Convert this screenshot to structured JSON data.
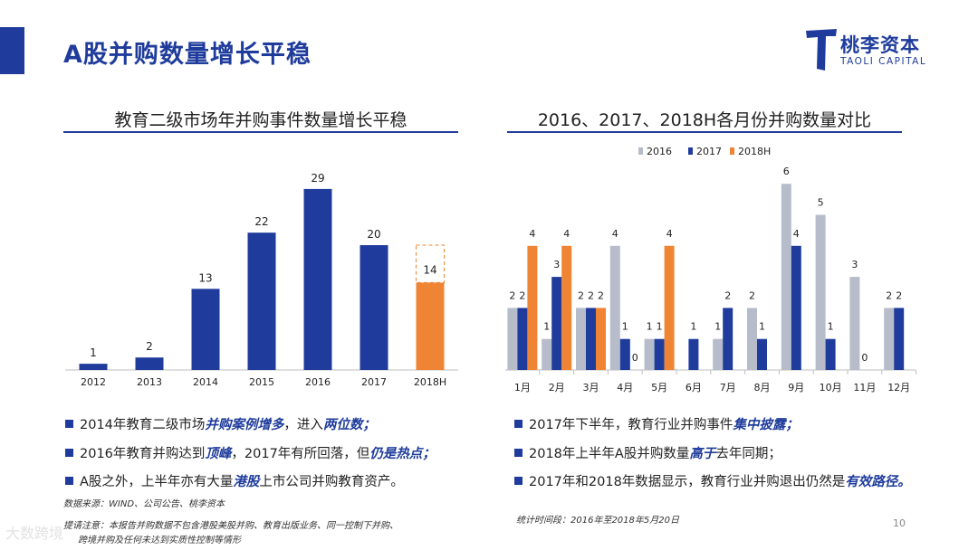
{
  "page": {
    "title": "A股并购数量增长平稳",
    "page_number": "10",
    "watermark": "大数跨境"
  },
  "logo": {
    "cn": "桃李资本",
    "en": "TAOLI CAPITAL"
  },
  "colors": {
    "blue": "#1f3c9c",
    "gray": "#b6bcc9",
    "orange": "#ee8434"
  },
  "chart_data": [
    {
      "type": "bar",
      "title": "教育二级市场年并购事件数量增长平稳",
      "categories": [
        "2012",
        "2013",
        "2014",
        "2015",
        "2016",
        "2017",
        "2018H"
      ],
      "values": [
        1,
        2,
        13,
        22,
        29,
        20,
        14
      ],
      "grid": false
    },
    {
      "type": "bar",
      "title": "2016、2017、2018H各月份并购数量对比",
      "categories": [
        "1月",
        "2月",
        "3月",
        "4月",
        "5月",
        "6月",
        "7月",
        "8月",
        "9月",
        "10月",
        "11月",
        "12月"
      ],
      "legend": "top",
      "series": [
        {
          "name": "2016",
          "values": [
            2,
            1,
            2,
            4,
            1,
            null,
            1,
            2,
            6,
            5,
            3,
            2
          ]
        },
        {
          "name": "2017",
          "values": [
            2,
            3,
            2,
            1,
            1,
            1,
            2,
            1,
            4,
            1,
            0,
            2
          ]
        },
        {
          "name": "2018H",
          "values": [
            4,
            4,
            2,
            0,
            4,
            null,
            null,
            null,
            null,
            null,
            null,
            null
          ]
        }
      ],
      "grid": false
    }
  ],
  "left_bullets": [
    {
      "parts": [
        {
          "t": "2014年教育二级市场"
        },
        {
          "t": "并购案例增多",
          "h": true
        },
        {
          "t": "，进入"
        },
        {
          "t": "两位数；",
          "h": true
        }
      ]
    },
    {
      "parts": [
        {
          "t": "2016年教育并购达到"
        },
        {
          "t": "顶峰",
          "h": true
        },
        {
          "t": "，2017年有所回落，但"
        },
        {
          "t": "仍是热点；",
          "h": true
        }
      ]
    },
    {
      "parts": [
        {
          "t": "A股之外，上半年亦有大量"
        },
        {
          "t": "港股",
          "h": true
        },
        {
          "t": "上市公司并购教育资产。"
        }
      ]
    }
  ],
  "right_bullets": [
    {
      "parts": [
        {
          "t": "2017年下半年，教育行业并购事件"
        },
        {
          "t": "集中披露；",
          "h": true
        }
      ]
    },
    {
      "parts": [
        {
          "t": "2018年上半年A股并购数量"
        },
        {
          "t": "高于",
          "h": true
        },
        {
          "t": "去年同期；"
        }
      ]
    },
    {
      "parts": [
        {
          "t": "2017年和2018年数据显示，教育行业并购退出仍然是"
        },
        {
          "t": "有效路径。",
          "h": true
        }
      ]
    }
  ],
  "notes": {
    "source": "数据来源：WIND、公司公告、桃李资本",
    "remark_1": "提请注意：本报告并购数据不包含港股美股并购、教育出版业务、同一控制下并购、",
    "remark_2": "跨境并购及任何未达到实质性控制等情形",
    "period": "统计时间段：2016年至2018年5月20日"
  }
}
